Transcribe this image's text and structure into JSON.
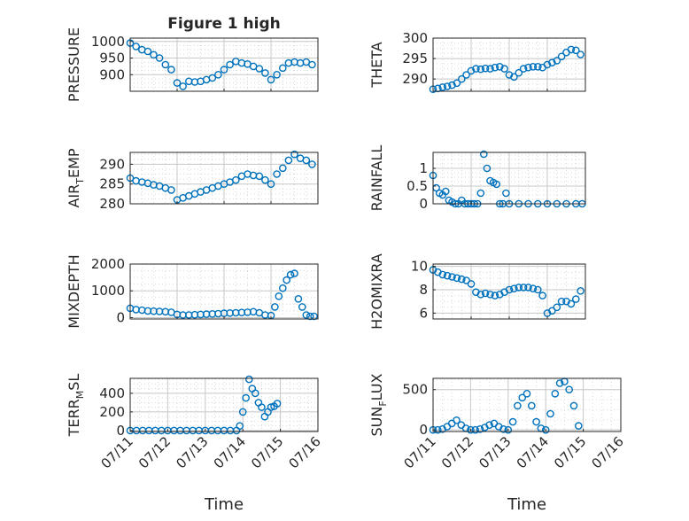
{
  "figure": {
    "title": "Figure 1 high"
  },
  "chart_data": [
    {
      "type": "scatter",
      "title": "Figure 1 high",
      "xlabel": "",
      "ylabel": "PRESSURE",
      "xlim": [
        "07/11",
        "07/15"
      ],
      "ylim": [
        850,
        1010
      ],
      "yticks": [
        900,
        950,
        1000
      ],
      "xticks": [],
      "grid": true,
      "marker": "circle-open",
      "x": [
        "07/11 00:00",
        "07/11 03:00",
        "07/11 06:00",
        "07/11 09:00",
        "07/11 12:00",
        "07/11 15:00",
        "07/11 18:00",
        "07/11 21:00",
        "07/12 00:00",
        "07/12 03:00",
        "07/12 06:00",
        "07/12 09:00",
        "07/12 12:00",
        "07/12 15:00",
        "07/12 18:00",
        "07/12 21:00",
        "07/13 00:00",
        "07/13 03:00",
        "07/13 06:00",
        "07/13 09:00",
        "07/13 12:00",
        "07/13 15:00",
        "07/13 18:00",
        "07/13 21:00",
        "07/14 00:00",
        "07/14 03:00",
        "07/14 06:00",
        "07/14 09:00",
        "07/14 12:00",
        "07/14 15:00",
        "07/14 18:00",
        "07/14 21:00"
      ],
      "y": [
        995,
        985,
        975,
        970,
        960,
        950,
        930,
        915,
        875,
        865,
        880,
        878,
        880,
        885,
        890,
        900,
        915,
        930,
        940,
        935,
        932,
        925,
        918,
        905,
        885,
        900,
        920,
        935,
        938,
        935,
        938,
        930
      ]
    },
    {
      "type": "scatter",
      "title": "",
      "xlabel": "",
      "ylabel": "THETA",
      "xlim": [
        "07/11",
        "07/15"
      ],
      "ylim": [
        287,
        300
      ],
      "yticks": [
        290,
        295,
        300
      ],
      "xticks": [],
      "grid": true,
      "marker": "circle-open",
      "x": [
        "07/11 00:00",
        "07/11 03:00",
        "07/11 06:00",
        "07/11 09:00",
        "07/11 12:00",
        "07/11 15:00",
        "07/11 18:00",
        "07/11 21:00",
        "07/12 00:00",
        "07/12 03:00",
        "07/12 06:00",
        "07/12 09:00",
        "07/12 12:00",
        "07/12 15:00",
        "07/12 18:00",
        "07/12 21:00",
        "07/13 00:00",
        "07/13 03:00",
        "07/13 06:00",
        "07/13 09:00",
        "07/13 12:00",
        "07/13 15:00",
        "07/13 18:00",
        "07/13 21:00",
        "07/14 00:00",
        "07/14 03:00",
        "07/14 06:00",
        "07/14 09:00",
        "07/14 12:00",
        "07/14 15:00",
        "07/14 18:00",
        "07/14 21:00"
      ],
      "y": [
        287.5,
        287.7,
        288.0,
        288.2,
        288.5,
        289.0,
        290.0,
        291.0,
        292.0,
        292.5,
        292.4,
        292.6,
        292.5,
        292.8,
        293.0,
        292.5,
        291.0,
        290.5,
        291.5,
        292.5,
        292.8,
        293.0,
        293.0,
        292.8,
        293.5,
        294.0,
        294.5,
        295.5,
        296.5,
        297.2,
        297.0,
        296.0
      ]
    },
    {
      "type": "scatter",
      "title": "",
      "xlabel": "",
      "ylabel": "AIR_TEMP",
      "xlim": [
        "07/11",
        "07/15"
      ],
      "ylim": [
        280,
        293
      ],
      "yticks": [
        280,
        285,
        290
      ],
      "xticks": [],
      "grid": true,
      "marker": "circle-open",
      "x": [
        "07/11 00:00",
        "07/11 03:00",
        "07/11 06:00",
        "07/11 09:00",
        "07/11 12:00",
        "07/11 15:00",
        "07/11 18:00",
        "07/11 21:00",
        "07/12 00:00",
        "07/12 03:00",
        "07/12 06:00",
        "07/12 09:00",
        "07/12 12:00",
        "07/12 15:00",
        "07/12 18:00",
        "07/12 21:00",
        "07/13 00:00",
        "07/13 03:00",
        "07/13 06:00",
        "07/13 09:00",
        "07/13 12:00",
        "07/13 15:00",
        "07/13 18:00",
        "07/13 21:00",
        "07/14 00:00",
        "07/14 03:00",
        "07/14 06:00",
        "07/14 09:00",
        "07/14 12:00",
        "07/14 15:00",
        "07/14 18:00",
        "07/14 21:00"
      ],
      "y": [
        286.5,
        285.8,
        285.5,
        285.2,
        284.8,
        284.5,
        284.0,
        283.5,
        281.0,
        281.5,
        282.0,
        282.5,
        283.0,
        283.5,
        284.0,
        284.5,
        285.0,
        285.5,
        286.0,
        287.0,
        287.5,
        287.2,
        287.0,
        286.0,
        285.0,
        287.5,
        289.0,
        291.0,
        292.5,
        291.5,
        291.0,
        290.0
      ]
    },
    {
      "type": "scatter",
      "title": "",
      "xlabel": "",
      "ylabel": "RAINFALL",
      "xlim": [
        "07/11",
        "07/15"
      ],
      "ylim": [
        0,
        1.45
      ],
      "yticks": [
        0,
        0.5,
        1
      ],
      "xticks": [],
      "grid": true,
      "marker": "circle-open",
      "x": [
        "07/11 00:00",
        "07/11 02:00",
        "07/11 04:00",
        "07/11 06:00",
        "07/11 08:00",
        "07/11 10:00",
        "07/11 12:00",
        "07/11 14:00",
        "07/11 16:00",
        "07/11 18:00",
        "07/11 20:00",
        "07/11 22:00",
        "07/12 00:00",
        "07/12 02:00",
        "07/12 04:00",
        "07/12 06:00",
        "07/12 08:00",
        "07/12 10:00",
        "07/12 12:00",
        "07/12 14:00",
        "07/12 16:00",
        "07/12 18:00",
        "07/12 20:00",
        "07/12 22:00",
        "07/13 00:00",
        "07/13 06:00",
        "07/13 12:00",
        "07/13 18:00",
        "07/14 00:00",
        "07/14 06:00",
        "07/14 12:00",
        "07/14 18:00",
        "07/14 22:00"
      ],
      "y": [
        0.8,
        0.45,
        0.3,
        0.25,
        0.35,
        0.1,
        0.05,
        0.0,
        0.0,
        0.1,
        0.0,
        0.0,
        0.0,
        0.0,
        0.0,
        0.3,
        1.4,
        1.0,
        0.65,
        0.6,
        0.55,
        0.0,
        0.0,
        0.3,
        0.0,
        0.0,
        0.0,
        0.0,
        0.0,
        0.0,
        0.0,
        0.0,
        0.0
      ]
    },
    {
      "type": "scatter",
      "title": "",
      "xlabel": "",
      "ylabel": "MIXDEPTH",
      "xlim": [
        "07/11",
        "07/15"
      ],
      "ylim": [
        -50,
        2000
      ],
      "yticks": [
        0,
        1000,
        2000
      ],
      "xticks": [],
      "grid": true,
      "marker": "circle-open",
      "x": [
        "07/11 00:00",
        "07/11 03:00",
        "07/11 06:00",
        "07/11 09:00",
        "07/11 12:00",
        "07/11 15:00",
        "07/11 18:00",
        "07/11 21:00",
        "07/12 00:00",
        "07/12 03:00",
        "07/12 06:00",
        "07/12 09:00",
        "07/12 12:00",
        "07/12 15:00",
        "07/12 18:00",
        "07/12 21:00",
        "07/13 00:00",
        "07/13 03:00",
        "07/13 06:00",
        "07/13 09:00",
        "07/13 12:00",
        "07/13 15:00",
        "07/13 18:00",
        "07/13 21:00",
        "07/14 00:00",
        "07/14 02:00",
        "07/14 04:00",
        "07/14 06:00",
        "07/14 08:00",
        "07/14 10:00",
        "07/14 12:00",
        "07/14 14:00",
        "07/14 16:00",
        "07/14 18:00",
        "07/14 20:00",
        "07/14 22:00"
      ],
      "y": [
        350,
        300,
        280,
        250,
        240,
        230,
        220,
        200,
        120,
        100,
        100,
        110,
        120,
        130,
        140,
        150,
        160,
        170,
        180,
        190,
        200,
        220,
        180,
        100,
        80,
        400,
        800,
        1100,
        1400,
        1600,
        1650,
        700,
        400,
        100,
        50,
        50
      ]
    },
    {
      "type": "scatter",
      "title": "",
      "xlabel": "",
      "ylabel": "H2OMIXRA",
      "xlim": [
        "07/11",
        "07/15"
      ],
      "ylim": [
        5.5,
        10.2
      ],
      "yticks": [
        6,
        8,
        10
      ],
      "xticks": [],
      "grid": true,
      "marker": "circle-open",
      "x": [
        "07/11 00:00",
        "07/11 03:00",
        "07/11 06:00",
        "07/11 09:00",
        "07/11 12:00",
        "07/11 15:00",
        "07/11 18:00",
        "07/11 21:00",
        "07/12 00:00",
        "07/12 03:00",
        "07/12 06:00",
        "07/12 09:00",
        "07/12 12:00",
        "07/12 15:00",
        "07/12 18:00",
        "07/12 21:00",
        "07/13 00:00",
        "07/13 03:00",
        "07/13 06:00",
        "07/13 09:00",
        "07/13 12:00",
        "07/13 15:00",
        "07/13 18:00",
        "07/13 21:00",
        "07/14 00:00",
        "07/14 03:00",
        "07/14 06:00",
        "07/14 09:00",
        "07/14 12:00",
        "07/14 15:00",
        "07/14 18:00",
        "07/14 21:00"
      ],
      "y": [
        9.7,
        9.5,
        9.3,
        9.2,
        9.1,
        9.0,
        8.9,
        8.8,
        8.5,
        7.8,
        7.6,
        7.7,
        7.6,
        7.5,
        7.6,
        7.8,
        8.0,
        8.1,
        8.2,
        8.2,
        8.2,
        8.1,
        8.0,
        7.5,
        6.0,
        6.2,
        6.5,
        7.0,
        7.0,
        6.8,
        7.2,
        7.9
      ]
    },
    {
      "type": "scatter",
      "title": "",
      "xlabel": "Time",
      "ylabel": "TERR_MSL",
      "xlim": [
        "07/11",
        "07/16"
      ],
      "ylim": [
        -10,
        560
      ],
      "yticks": [
        0,
        200,
        400
      ],
      "xticks": [
        "07/11",
        "07/12",
        "07/13",
        "07/14",
        "07/15",
        "07/16"
      ],
      "grid": true,
      "marker": "circle-open",
      "x": [
        "07/11 00:00",
        "07/11 04:00",
        "07/11 08:00",
        "07/11 12:00",
        "07/11 16:00",
        "07/11 20:00",
        "07/12 00:00",
        "07/12 04:00",
        "07/12 08:00",
        "07/12 12:00",
        "07/12 16:00",
        "07/12 20:00",
        "07/13 00:00",
        "07/13 04:00",
        "07/13 08:00",
        "07/13 12:00",
        "07/13 16:00",
        "07/13 20:00",
        "07/13 22:00",
        "07/14 00:00",
        "07/14 02:00",
        "07/14 04:00",
        "07/14 06:00",
        "07/14 08:00",
        "07/14 10:00",
        "07/14 12:00",
        "07/14 14:00",
        "07/14 16:00",
        "07/14 18:00",
        "07/14 20:00",
        "07/14 22:00"
      ],
      "y": [
        0,
        0,
        0,
        0,
        0,
        0,
        0,
        0,
        0,
        0,
        0,
        0,
        0,
        0,
        0,
        0,
        0,
        0,
        50,
        200,
        350,
        550,
        450,
        400,
        300,
        250,
        150,
        200,
        250,
        260,
        290
      ]
    },
    {
      "type": "scatter",
      "title": "",
      "xlabel": "Time",
      "ylabel": "SUN_FLUX",
      "xlim": [
        "07/11",
        "07/16"
      ],
      "ylim": [
        -20,
        640
      ],
      "yticks": [
        0,
        500
      ],
      "xticks": [
        "07/11",
        "07/12",
        "07/13",
        "07/14",
        "07/15",
        "07/16"
      ],
      "grid": true,
      "marker": "circle-open",
      "x": [
        "07/11 00:00",
        "07/11 03:00",
        "07/11 06:00",
        "07/11 09:00",
        "07/11 12:00",
        "07/11 15:00",
        "07/11 18:00",
        "07/11 21:00",
        "07/12 00:00",
        "07/12 03:00",
        "07/12 06:00",
        "07/12 09:00",
        "07/12 12:00",
        "07/12 15:00",
        "07/12 18:00",
        "07/12 21:00",
        "07/13 00:00",
        "07/13 03:00",
        "07/13 06:00",
        "07/13 09:00",
        "07/13 12:00",
        "07/13 15:00",
        "07/13 18:00",
        "07/13 21:00",
        "07/14 00:00",
        "07/14 03:00",
        "07/14 06:00",
        "07/14 09:00",
        "07/14 12:00",
        "07/14 15:00",
        "07/14 18:00",
        "07/14 21:00"
      ],
      "y": [
        0,
        0,
        10,
        40,
        80,
        120,
        60,
        20,
        0,
        0,
        10,
        30,
        60,
        80,
        40,
        10,
        0,
        100,
        300,
        400,
        450,
        300,
        100,
        20,
        0,
        200,
        450,
        580,
        600,
        500,
        300,
        50
      ]
    }
  ]
}
